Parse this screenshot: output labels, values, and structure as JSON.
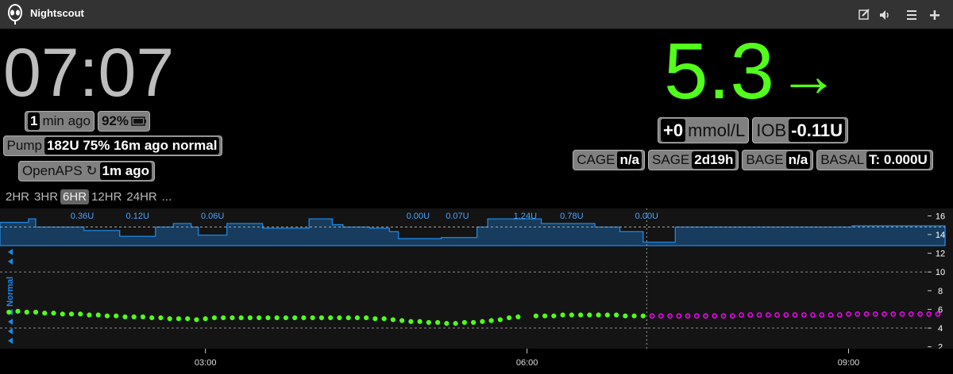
{
  "header": {
    "title": "Nightscout"
  },
  "status": {
    "time": "07:07",
    "ago_value": "1",
    "ago_label": "min ago",
    "battery": "92%",
    "pump_label": "Pump",
    "pump": "182U 75% 16m ago normal",
    "loop_label": "OpenAPS ↻",
    "loop": "1m ago"
  },
  "bg": {
    "value": "5.3",
    "arrow": "→",
    "delta": "+0",
    "units": "mmol/L",
    "iob_label": "IOB",
    "iob": "-0.11U"
  },
  "pills": [
    {
      "label": "CAGE",
      "value": "n/a"
    },
    {
      "label": "SAGE",
      "value": "2d19h"
    },
    {
      "label": "BAGE",
      "value": "n/a"
    },
    {
      "label": "BASAL",
      "value": "T: 0.000U"
    }
  ],
  "ranges": [
    "2HR",
    "3HR",
    "6HR",
    "12HR",
    "24HR",
    "..."
  ],
  "active_range": "6HR",
  "chart": {
    "type": "scatter",
    "ylim": [
      1.8,
      16.8
    ],
    "yticks": [
      16,
      14,
      12,
      10,
      8,
      6,
      4,
      2
    ],
    "xlim": [
      "01:05",
      "09:54"
    ],
    "xticks": [
      "03:00",
      "06:00",
      "09:00"
    ],
    "target_low": 4,
    "target_high": 10,
    "profile_label": "Normal",
    "series": [
      {
        "color": "#52ff1a",
        "x": [
          "01:10",
          "01:15",
          "01:20",
          "01:25",
          "01:30",
          "01:35",
          "01:40",
          "01:45",
          "01:50",
          "01:55",
          "02:00",
          "02:05",
          "02:10",
          "02:15",
          "02:20",
          "02:25",
          "02:30",
          "02:35",
          "02:40",
          "02:45",
          "02:50",
          "02:55",
          "03:00",
          "03:05",
          "03:10",
          "03:15",
          "03:20",
          "03:25",
          "03:30",
          "03:35",
          "03:40",
          "03:45",
          "03:50",
          "03:55",
          "04:00",
          "04:05",
          "04:10",
          "04:15",
          "04:20",
          "04:25",
          "04:30",
          "04:35",
          "04:40",
          "04:45",
          "04:50",
          "04:55",
          "05:00",
          "05:05",
          "05:10",
          "05:15",
          "05:20",
          "05:25",
          "05:30",
          "05:35",
          "05:40",
          "05:45",
          "05:50",
          "05:55",
          "06:00",
          "06:05",
          "06:10",
          "06:15",
          "06:20",
          "06:25",
          "06:30",
          "06:35",
          "06:40",
          "06:45",
          "06:50",
          "06:55",
          "07:00",
          "07:05"
        ],
        "values": [
          5.7,
          5.8,
          5.7,
          5.7,
          5.6,
          5.6,
          5.5,
          5.5,
          5.5,
          5.4,
          5.4,
          5.3,
          5.3,
          5.2,
          5.2,
          5.2,
          5.1,
          5.1,
          5.0,
          5.0,
          5.0,
          4.9,
          5.0,
          5.1,
          5.1,
          5.1,
          5.1,
          5.1,
          5.1,
          5.1,
          5.1,
          5.1,
          5.1,
          5.1,
          5.1,
          5.1,
          5.1,
          5.1,
          5.1,
          5.1,
          5.1,
          5.0,
          5.0,
          4.9,
          4.8,
          4.7,
          4.7,
          4.6,
          4.6,
          4.5,
          4.5,
          4.6,
          4.6,
          4.7,
          4.8,
          4.9,
          5.1,
          5.2,
          null,
          5.3,
          5.3,
          5.3,
          5.4,
          5.4,
          5.4,
          5.4,
          5.4,
          5.4,
          5.4,
          5.3,
          5.3,
          5.3
        ]
      },
      {
        "color": "#ff00ff",
        "hollow": true,
        "x": [
          "07:10",
          "07:15",
          "07:20",
          "07:25",
          "07:30",
          "07:35",
          "07:40",
          "07:45",
          "07:50",
          "07:55",
          "08:00",
          "08:05",
          "08:10",
          "08:15",
          "08:20",
          "08:25",
          "08:30",
          "08:35",
          "08:40",
          "08:45",
          "08:50",
          "08:55",
          "09:00",
          "09:05",
          "09:10",
          "09:15",
          "09:20",
          "09:25",
          "09:30",
          "09:35",
          "09:40",
          "09:45",
          "09:50"
        ],
        "values": [
          5.3,
          5.3,
          5.3,
          5.3,
          5.3,
          5.3,
          5.3,
          5.3,
          5.3,
          5.3,
          5.4,
          5.4,
          5.4,
          5.4,
          5.4,
          5.4,
          5.4,
          5.4,
          5.4,
          5.4,
          5.4,
          5.4,
          5.5,
          5.5,
          5.5,
          5.5,
          5.5,
          5.5,
          5.5,
          5.5,
          5.5,
          5.5,
          5.5
        ]
      }
    ],
    "basal": {
      "color": "#1e88e5",
      "scheduled": 0.8,
      "ylim": [
        0,
        1.6
      ],
      "x": [
        "01:05",
        "01:21",
        "01:25",
        "01:52",
        "02:12",
        "02:32",
        "02:42",
        "02:52",
        "02:56",
        "03:12",
        "03:32",
        "03:58",
        "04:11",
        "04:17",
        "04:32",
        "04:43",
        "04:48",
        "05:12",
        "05:32",
        "05:38",
        "06:08",
        "06:38",
        "06:52",
        "07:05",
        "07:23",
        "09:02"
      ],
      "values": [
        1.0,
        1.15,
        0.8,
        0.65,
        0.4,
        0.8,
        0.95,
        0.8,
        0.45,
        0.95,
        0.75,
        1.15,
        0.9,
        0.8,
        0.75,
        0.6,
        0.3,
        0.35,
        0.8,
        1.15,
        0.95,
        0.8,
        0.6,
        0.15,
        0.8,
        0.85
      ]
    },
    "treatments": [
      {
        "x": "01:51",
        "label": "0.36U"
      },
      {
        "x": "02:22",
        "label": "0.12U"
      },
      {
        "x": "03:04",
        "label": "0.06U"
      },
      {
        "x": "04:59",
        "label": "0.00U"
      },
      {
        "x": "05:21",
        "label": "0.07U"
      },
      {
        "x": "05:59",
        "label": "1.24U"
      },
      {
        "x": "06:25",
        "label": "0.78U"
      },
      {
        "x": "07:07",
        "label": "0.00U"
      }
    ]
  }
}
